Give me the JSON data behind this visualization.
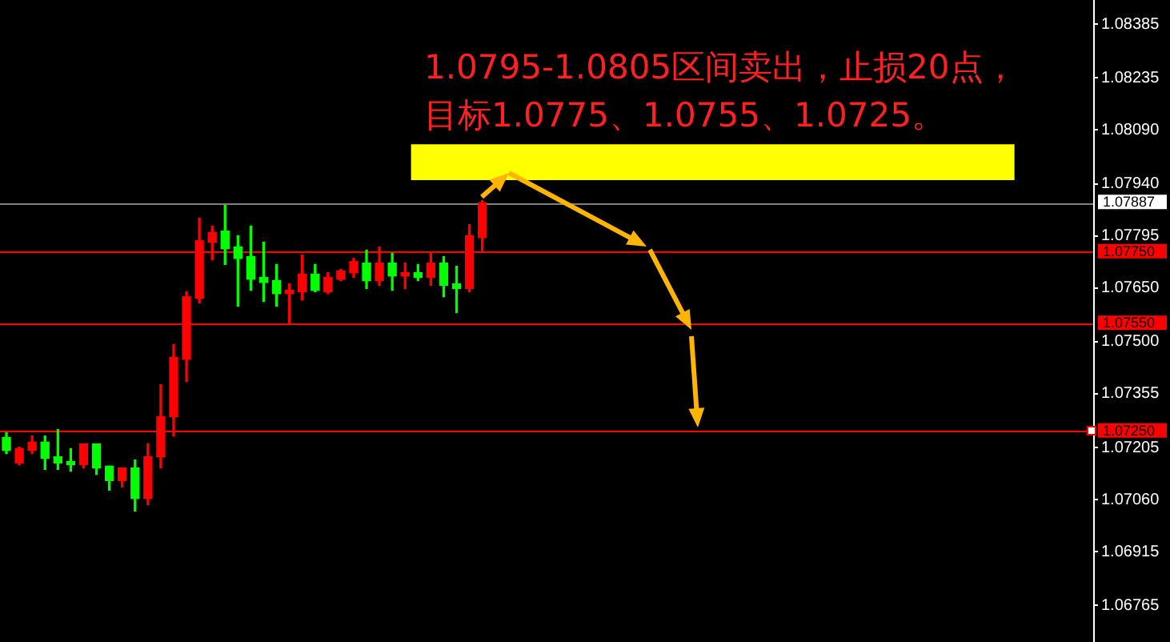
{
  "chart_data": {
    "type": "candlestick",
    "categories": [
      null,
      null,
      null,
      null,
      null,
      null,
      null,
      null,
      null,
      null,
      null,
      null,
      null,
      null,
      null,
      null,
      null,
      null,
      null,
      null,
      null,
      null,
      null,
      null,
      null,
      null,
      null,
      null,
      null,
      null,
      null,
      null,
      null,
      null,
      null,
      null,
      null,
      null,
      null,
      null,
      null,
      null,
      null,
      null,
      null,
      null,
      null,
      null,
      null,
      null,
      null,
      null,
      null,
      null,
      null,
      null,
      null,
      null,
      null,
      null,
      null,
      null,
      null,
      null,
      null,
      null,
      null,
      null,
      null,
      null,
      null,
      null,
      null,
      null,
      null,
      null,
      null,
      null,
      null,
      null,
      null,
      null,
      null,
      null,
      null
    ],
    "ohlc": [
      [
        1.07233,
        1.07246,
        1.07188,
        1.07197
      ],
      [
        1.07162,
        1.07206,
        1.07157,
        1.07202
      ],
      [
        1.07197,
        1.07237,
        1.07188,
        1.0722
      ],
      [
        1.0722,
        1.07237,
        1.07144,
        1.07175
      ],
      [
        1.07179,
        1.07255,
        1.07144,
        1.07162
      ],
      [
        1.07166,
        1.07202,
        1.07139,
        1.07157
      ],
      [
        1.07157,
        1.07215,
        1.07148,
        1.07215
      ],
      [
        1.07215,
        1.07215,
        1.0713,
        1.07148
      ],
      [
        1.07153,
        1.07153,
        1.07086,
        1.07113
      ],
      [
        1.07113,
        1.07148,
        1.07095,
        1.07148
      ],
      [
        1.07148,
        1.0717,
        1.07028,
        1.07063
      ],
      [
        1.07063,
        1.07215,
        1.07046,
        1.07179
      ],
      [
        1.07179,
        1.0738,
        1.07148,
        1.07291
      ],
      [
        1.07291,
        1.07492,
        1.07237,
        1.07456
      ],
      [
        1.07451,
        1.07639,
        1.07389,
        1.07625
      ],
      [
        1.07621,
        1.07844,
        1.07608,
        1.07781
      ],
      [
        1.07777,
        1.07822,
        1.07728,
        1.07804
      ],
      [
        1.07808,
        1.0788,
        1.07715,
        1.07759
      ],
      [
        1.07764,
        1.07795,
        1.07599,
        1.07732
      ],
      [
        1.07737,
        1.07822,
        1.07643,
        1.07674
      ],
      [
        1.07679,
        1.07777,
        1.07612,
        1.07665
      ],
      [
        1.0767,
        1.07715,
        1.07599,
        1.07634
      ],
      [
        1.07634,
        1.07661,
        1.0755,
        1.07643
      ],
      [
        1.07639,
        1.07741,
        1.07616,
        1.07688
      ],
      [
        1.07688,
        1.07715,
        1.07639,
        1.07643
      ],
      [
        1.07639,
        1.07692,
        1.07634,
        1.07679
      ],
      [
        1.07674,
        1.07701,
        1.0767,
        1.07697
      ],
      [
        1.07692,
        1.07732,
        1.07679,
        1.07723
      ],
      [
        1.07719,
        1.07755,
        1.07648,
        1.0767
      ],
      [
        1.0767,
        1.07764,
        1.07657,
        1.07719
      ],
      [
        1.07719,
        1.07746,
        1.07643,
        1.07683
      ],
      [
        1.07683,
        1.07719,
        1.07648,
        1.07692
      ],
      [
        1.07692,
        1.07715,
        1.0767,
        1.07679
      ],
      [
        1.07679,
        1.07746,
        1.07657,
        1.07719
      ],
      [
        1.07719,
        1.07737,
        1.07625,
        1.07657
      ],
      [
        1.07661,
        1.0771,
        1.07581,
        1.07648
      ],
      [
        1.07648,
        1.07826,
        1.07639,
        1.07795
      ],
      [
        1.0779,
        1.07893,
        1.0775,
        1.07887
      ],
      null,
      null,
      null,
      null,
      null,
      null,
      null,
      null,
      null,
      null,
      null,
      null,
      null,
      null,
      null,
      null,
      null,
      null,
      null,
      null,
      null,
      null,
      null,
      null,
      null,
      null,
      null,
      null,
      null,
      null,
      null,
      null,
      null,
      null,
      null,
      null,
      null,
      null,
      null,
      null,
      null,
      null,
      null,
      null,
      null,
      null,
      null
    ],
    "colors": [
      "#00ff00",
      "#ff0000",
      "#ff0000",
      "#00ff00",
      "#00ff00",
      "#00ff00",
      "#ff0000",
      "#00ff00",
      "#00ff00",
      "#ff0000",
      "#00ff00",
      "#ff0000",
      "#ff0000",
      "#ff0000",
      "#ff0000",
      "#ff0000",
      "#ff0000",
      "#00ff00",
      "#00ff00",
      "#00ff00",
      "#00ff00",
      "#00ff00",
      "#ff0000",
      "#ff0000",
      "#00ff00",
      "#ff0000",
      "#ff0000",
      "#ff0000",
      "#00ff00",
      "#ff0000",
      "#00ff00",
      "#ff0000",
      "#00ff00",
      "#ff0000",
      "#00ff00",
      "#00ff00",
      "#ff0000",
      "#ff0000",
      null,
      null,
      null,
      null,
      null,
      null,
      null,
      null,
      null,
      null,
      null,
      null,
      null,
      null,
      null,
      null,
      null,
      null,
      null,
      null,
      null,
      null,
      null,
      null,
      null,
      null,
      null,
      null,
      null,
      null,
      null,
      null,
      null,
      null,
      null,
      null,
      null,
      null,
      null,
      null,
      null,
      null,
      null,
      null,
      null,
      null,
      null
    ],
    "ylim": [
      1.06663,
      1.08452
    ],
    "yticks": [
      {
        "value": 1.08385,
        "label": "1.08385"
      },
      {
        "value": 1.08235,
        "label": "1.08235"
      },
      {
        "value": 1.0809,
        "label": "1.08090"
      },
      {
        "value": 1.0794,
        "label": "1.07940"
      },
      {
        "value": 1.07795,
        "label": "1.07795"
      },
      {
        "value": 1.0765,
        "label": "1.07650"
      },
      {
        "value": 1.075,
        "label": "1.07500"
      },
      {
        "value": 1.07355,
        "label": "1.07355"
      },
      {
        "value": 1.07205,
        "label": "1.07205"
      },
      {
        "value": 1.0706,
        "label": "1.07060"
      },
      {
        "value": 1.06915,
        "label": "1.06915"
      },
      {
        "value": 1.06765,
        "label": "1.06765"
      }
    ],
    "tick_labels": "y",
    "grid": false,
    "legend": false,
    "ref_lines": [
      {
        "axis": "y",
        "value": 1.07887,
        "label": "1.07887",
        "color": "#808080"
      },
      {
        "axis": "y",
        "value": 1.0775,
        "label": "1.07750",
        "color": "#ff0000"
      },
      {
        "axis": "y",
        "value": 1.0755,
        "label": "1.07550",
        "color": "#ff0000"
      },
      {
        "axis": "y",
        "value": 1.0725,
        "label": "1.07250",
        "color": "#ff0000"
      }
    ],
    "bands": [
      {
        "axis": "y",
        "from": 1.0795,
        "to": 1.0805,
        "color": "#ffff00"
      }
    ],
    "annotations": [
      "1.0795-1.0805区间卖出，止损20点，",
      "目标1.0775、1.0755、1.0725。"
    ]
  }
}
